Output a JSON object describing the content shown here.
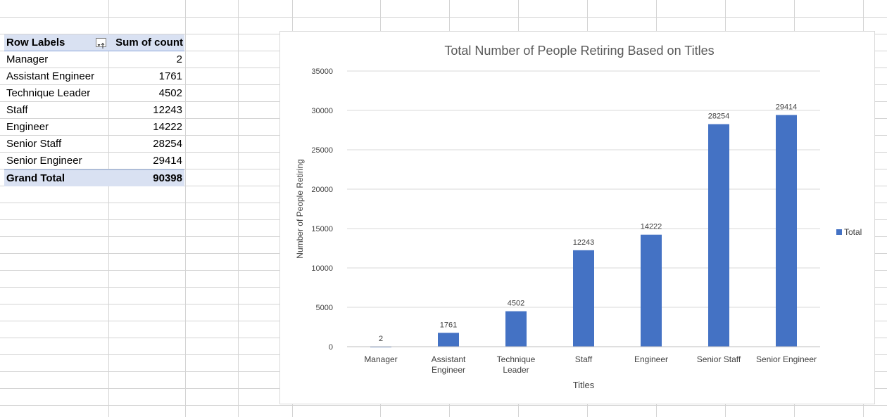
{
  "pivot": {
    "header": {
      "row_labels": "Row Labels",
      "sum_label": "Sum of count"
    },
    "rows": [
      {
        "label": "Manager",
        "value": "2"
      },
      {
        "label": "Assistant Engineer",
        "value": "1761"
      },
      {
        "label": "Technique Leader",
        "value": "4502"
      },
      {
        "label": "Staff",
        "value": "12243"
      },
      {
        "label": "Engineer",
        "value": "14222"
      },
      {
        "label": "Senior Staff",
        "value": "28254"
      },
      {
        "label": "Senior Engineer",
        "value": "29414"
      }
    ],
    "total": {
      "label": "Grand Total",
      "value": "90398"
    }
  },
  "chart_data": {
    "type": "bar",
    "title": "Total Number of People Retiring Based on Titles",
    "xlabel": "Titles",
    "ylabel": "Number of People Retiring",
    "categories": [
      "Manager",
      "Assistant Engineer",
      "Technique Leader",
      "Staff",
      "Engineer",
      "Senior Staff",
      "Senior Engineer"
    ],
    "series": [
      {
        "name": "Total",
        "values": [
          2,
          1761,
          4502,
          12243,
          14222,
          28254,
          29414
        ],
        "color": "#4472c4"
      }
    ],
    "ylim": [
      0,
      35000
    ],
    "yticks": [
      0,
      5000,
      10000,
      15000,
      20000,
      25000,
      30000,
      35000
    ],
    "grid": true,
    "legend_position": "right",
    "data_labels": true
  }
}
